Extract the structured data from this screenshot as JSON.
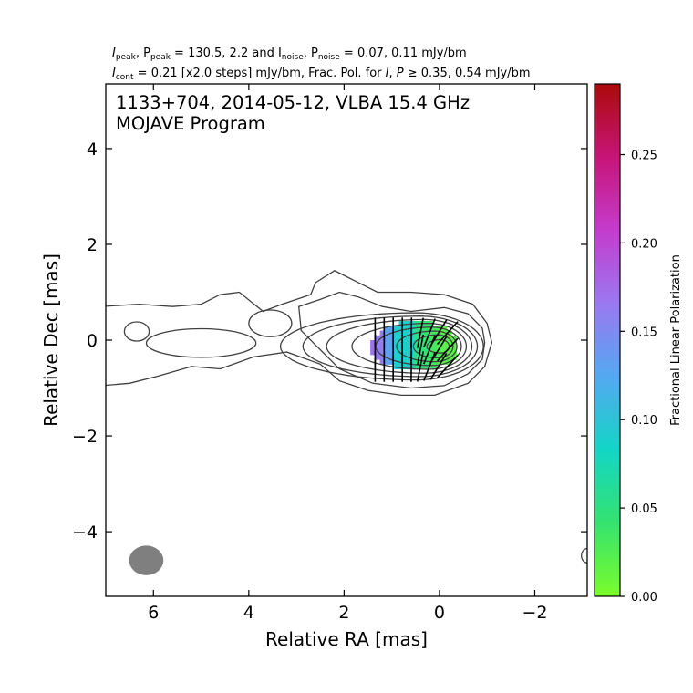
{
  "chart_data": {
    "type": "contour",
    "header_line1": {
      "a": "I",
      "a_sub": "peak",
      "b": ", P",
      "b_sub": "peak",
      "c": " = 130.5, 2.2 and I",
      "c_sub": "noise",
      "d": ", P",
      "d_sub": "noise",
      "e": " = 0.07, 0.11 mJy/bm"
    },
    "header_line2": {
      "a": "I",
      "a_sub": "cont",
      "b": " = 0.21 [x2.0 steps] mJy/bm, Frac. Pol. for ",
      "c": "I",
      "d": ", ",
      "e": "P",
      "f": " ≥ 0.35, 0.54 mJy/bm"
    },
    "annotation_line1": "1133+704, 2014-05-12, VLBA 15.4 GHz",
    "annotation_line2": "MOJAVE Program",
    "xlabel": "Relative RA [mas]",
    "ylabel": "Relative Dec [mas]",
    "colorbar_label": "Fractional Linear Polarization",
    "xlim": [
      7.0,
      -3.1
    ],
    "ylim": [
      -5.35,
      5.35
    ],
    "x_ticks": [
      6,
      4,
      2,
      0,
      -2
    ],
    "x_tick_labels": [
      "6",
      "4",
      "2",
      "0",
      "−2"
    ],
    "y_ticks": [
      4,
      2,
      0,
      -2,
      -4
    ],
    "y_tick_labels": [
      "4",
      "2",
      "0",
      "−2",
      "−4"
    ],
    "colorbar_range": [
      0.0,
      0.29
    ],
    "colorbar_ticks": [
      0.0,
      0.05,
      0.1,
      0.15,
      0.2,
      0.25
    ],
    "colorbar_tick_labels": [
      "0.00",
      "0.05",
      "0.10",
      "0.15",
      "0.20",
      "0.25"
    ],
    "colormap_stops": [
      "#7cfc2a",
      "#34e36f",
      "#12d6c6",
      "#54a8f0",
      "#9a78f0",
      "#c43ccc",
      "#c81478",
      "#aa0a0a"
    ],
    "colors": {
      "contour": "#404040",
      "beam": "#7f7f7f",
      "evpa": "#000000"
    },
    "beam": {
      "x": 6.15,
      "y": -4.6,
      "major_mas": 0.72,
      "minor_mas": 0.62,
      "pa_deg": 0
    },
    "contour_levels_count": 10,
    "core_position": [
      -0.1,
      -0.15
    ],
    "jet_direction": "extends east (positive RA) to about 7 mas along Dec ≈ 0"
  }
}
